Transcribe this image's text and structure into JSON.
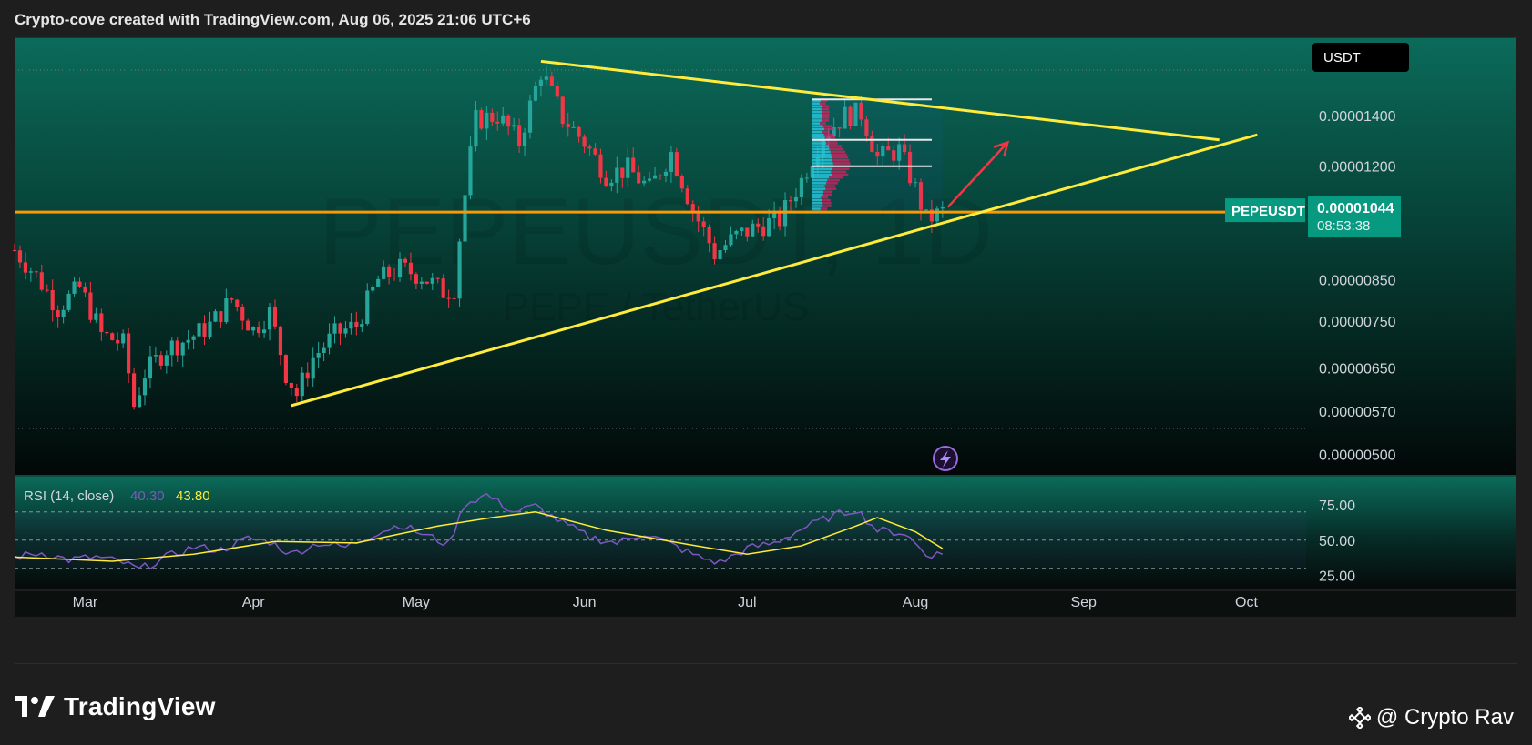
{
  "header": {
    "text": "Crypto-cove created with TradingView.com, Aug 06, 2025 21:06 UTC+6"
  },
  "footer": {
    "logo_text": "TradingView",
    "credit_text": "@ Crypto Rav"
  },
  "colors": {
    "up": "#26a69a",
    "down": "#f23645",
    "trendline": "#ffeb3b",
    "support": "#ff9800",
    "rsi": "#7e57c2",
    "rsi_ma": "#ffeb3b",
    "arrow": "#f23645",
    "profile": "#26c6da",
    "profile_down": "#e91e63"
  },
  "chart_data": [
    {
      "type": "candlestick",
      "symbol_label": "PEPEUSDT",
      "watermark": [
        "PEPEUSDT, 1D",
        "PEPE / TetherUS"
      ],
      "currency_badge": "USDT",
      "last_price_label": "0.00001044",
      "countdown_label": "08:53:38",
      "price_scale": "log",
      "y_ticks": [
        "0.00001400",
        "0.00001200",
        "0.00000850",
        "0.00000750",
        "0.00000650",
        "0.00000570",
        "0.00000500"
      ],
      "x_ticks": [
        "Mar",
        "Apr",
        "May",
        "Jun",
        "Jul",
        "Aug",
        "Sep",
        "Oct"
      ],
      "x_range": [
        "2025-02-16",
        "2025-10-12"
      ],
      "y_range": [
        4.7e-06,
        1.77e-05
      ],
      "close_path": [
        [
          "2025-02-16",
          9.3e-06
        ],
        [
          "2025-02-20",
          8.6e-06
        ],
        [
          "2025-02-24",
          7.8e-06
        ],
        [
          "2025-02-28",
          8.3e-06
        ],
        [
          "2025-03-04",
          7.2e-06
        ],
        [
          "2025-03-08",
          7e-06
        ],
        [
          "2025-03-10",
          5.8e-06
        ],
        [
          "2025-03-12",
          6.4e-06
        ],
        [
          "2025-03-16",
          6.9e-06
        ],
        [
          "2025-03-20",
          7.1e-06
        ],
        [
          "2025-03-24",
          7.4e-06
        ],
        [
          "2025-03-28",
          8e-06
        ],
        [
          "2025-04-01",
          7.3e-06
        ],
        [
          "2025-04-04",
          7.7e-06
        ],
        [
          "2025-04-07",
          6.4e-06
        ],
        [
          "2025-04-09",
          6e-06
        ],
        [
          "2025-04-12",
          6.7e-06
        ],
        [
          "2025-04-16",
          7.2e-06
        ],
        [
          "2025-04-20",
          7.4e-06
        ],
        [
          "2025-04-24",
          8.5e-06
        ],
        [
          "2025-04-28",
          8.8e-06
        ],
        [
          "2025-05-02",
          8.6e-06
        ],
        [
          "2025-05-06",
          8.2e-06
        ],
        [
          "2025-05-08",
          8.3e-06
        ],
        [
          "2025-05-10",
          1.1e-05
        ],
        [
          "2025-05-12",
          1.38e-05
        ],
        [
          "2025-05-16",
          1.4e-05
        ],
        [
          "2025-05-20",
          1.29e-05
        ],
        [
          "2025-05-22",
          1.44e-05
        ],
        [
          "2025-05-24",
          1.6e-05
        ],
        [
          "2025-05-28",
          1.39e-05
        ],
        [
          "2025-06-01",
          1.29e-05
        ],
        [
          "2025-06-05",
          1.17e-05
        ],
        [
          "2025-06-09",
          1.19e-05
        ],
        [
          "2025-06-13",
          1.12e-05
        ],
        [
          "2025-06-17",
          1.25e-05
        ],
        [
          "2025-06-21",
          1.05e-05
        ],
        [
          "2025-06-25",
          9.2e-06
        ],
        [
          "2025-06-29",
          9.7e-06
        ],
        [
          "2025-07-03",
          1e-05
        ],
        [
          "2025-07-07",
          1.02e-05
        ],
        [
          "2025-07-11",
          1.15e-05
        ],
        [
          "2025-07-15",
          1.32e-05
        ],
        [
          "2025-07-19",
          1.4e-05
        ],
        [
          "2025-07-22",
          1.41e-05
        ],
        [
          "2025-07-25",
          1.23e-05
        ],
        [
          "2025-07-29",
          1.26e-05
        ],
        [
          "2025-08-01",
          1.12e-05
        ],
        [
          "2025-08-03",
          1.02e-05
        ],
        [
          "2025-08-06",
          1.044e-05
        ]
      ],
      "annotations": {
        "support_line": {
          "price": 1.044e-05
        },
        "upper_trendline": [
          [
            "2025-05-24",
            1.65e-05
          ],
          [
            "2025-09-26",
            1.3e-05
          ]
        ],
        "lower_trendline": [
          [
            "2025-04-08",
            5.8e-06
          ],
          [
            "2025-10-03",
            1.32e-05
          ]
        ],
        "projection_arrow": [
          [
            "2025-08-07",
            1.06e-05
          ],
          [
            "2025-08-18",
            1.29e-05
          ]
        ],
        "volume_profile": {
          "from": "2025-07-13",
          "to": "2025-08-06",
          "top": 1.47e-05,
          "bottom": 1.04e-05
        },
        "range_levels": [
          1.47e-05,
          1.3e-05,
          1.2e-05
        ]
      }
    },
    {
      "type": "line",
      "title": "RSI (14, close)",
      "rsi_value_label": "40.30",
      "ma_value_label": "43.80",
      "y_ticks": [
        "75.00",
        "50.00",
        "25.00"
      ],
      "levels": [
        70,
        50,
        30
      ],
      "y_range": [
        15,
        95
      ],
      "series": [
        {
          "key": "rsi",
          "values": [
            [
              "2025-02-16",
              38
            ],
            [
              "2025-02-21",
              41
            ],
            [
              "2025-02-26",
              36
            ],
            [
              "2025-03-03",
              38
            ],
            [
              "2025-03-08",
              34
            ],
            [
              "2025-03-11",
              29
            ],
            [
              "2025-03-16",
              38
            ],
            [
              "2025-03-21",
              45
            ],
            [
              "2025-03-26",
              43
            ],
            [
              "2025-03-31",
              51
            ],
            [
              "2025-04-04",
              49
            ],
            [
              "2025-04-08",
              40
            ],
            [
              "2025-04-13",
              48
            ],
            [
              "2025-04-18",
              45
            ],
            [
              "2025-04-23",
              54
            ],
            [
              "2025-04-28",
              61
            ],
            [
              "2025-05-03",
              53
            ],
            [
              "2025-05-07",
              47
            ],
            [
              "2025-05-10",
              76
            ],
            [
              "2025-05-14",
              82
            ],
            [
              "2025-05-19",
              70
            ],
            [
              "2025-05-23",
              74
            ],
            [
              "2025-05-28",
              62
            ],
            [
              "2025-06-02",
              52
            ],
            [
              "2025-06-07",
              48
            ],
            [
              "2025-06-12",
              55
            ],
            [
              "2025-06-17",
              47
            ],
            [
              "2025-06-22",
              38
            ],
            [
              "2025-06-26",
              34
            ],
            [
              "2025-07-01",
              44
            ],
            [
              "2025-07-06",
              48
            ],
            [
              "2025-07-11",
              58
            ],
            [
              "2025-07-16",
              66
            ],
            [
              "2025-07-21",
              72
            ],
            [
              "2025-07-25",
              57
            ],
            [
              "2025-07-30",
              55
            ],
            [
              "2025-08-03",
              40
            ],
            [
              "2025-08-06",
              40
            ]
          ]
        },
        {
          "key": "rsi_ma",
          "values": [
            [
              "2025-02-16",
              38
            ],
            [
              "2025-03-06",
              35
            ],
            [
              "2025-03-21",
              40
            ],
            [
              "2025-04-05",
              49
            ],
            [
              "2025-04-20",
              48
            ],
            [
              "2025-05-05",
              60
            ],
            [
              "2025-05-15",
              66
            ],
            [
              "2025-05-23",
              70
            ],
            [
              "2025-06-05",
              57
            ],
            [
              "2025-06-20",
              47
            ],
            [
              "2025-07-01",
              40
            ],
            [
              "2025-07-11",
              46
            ],
            [
              "2025-07-21",
              60
            ],
            [
              "2025-07-25",
              66
            ],
            [
              "2025-08-01",
              56
            ],
            [
              "2025-08-06",
              44
            ]
          ]
        }
      ]
    }
  ]
}
